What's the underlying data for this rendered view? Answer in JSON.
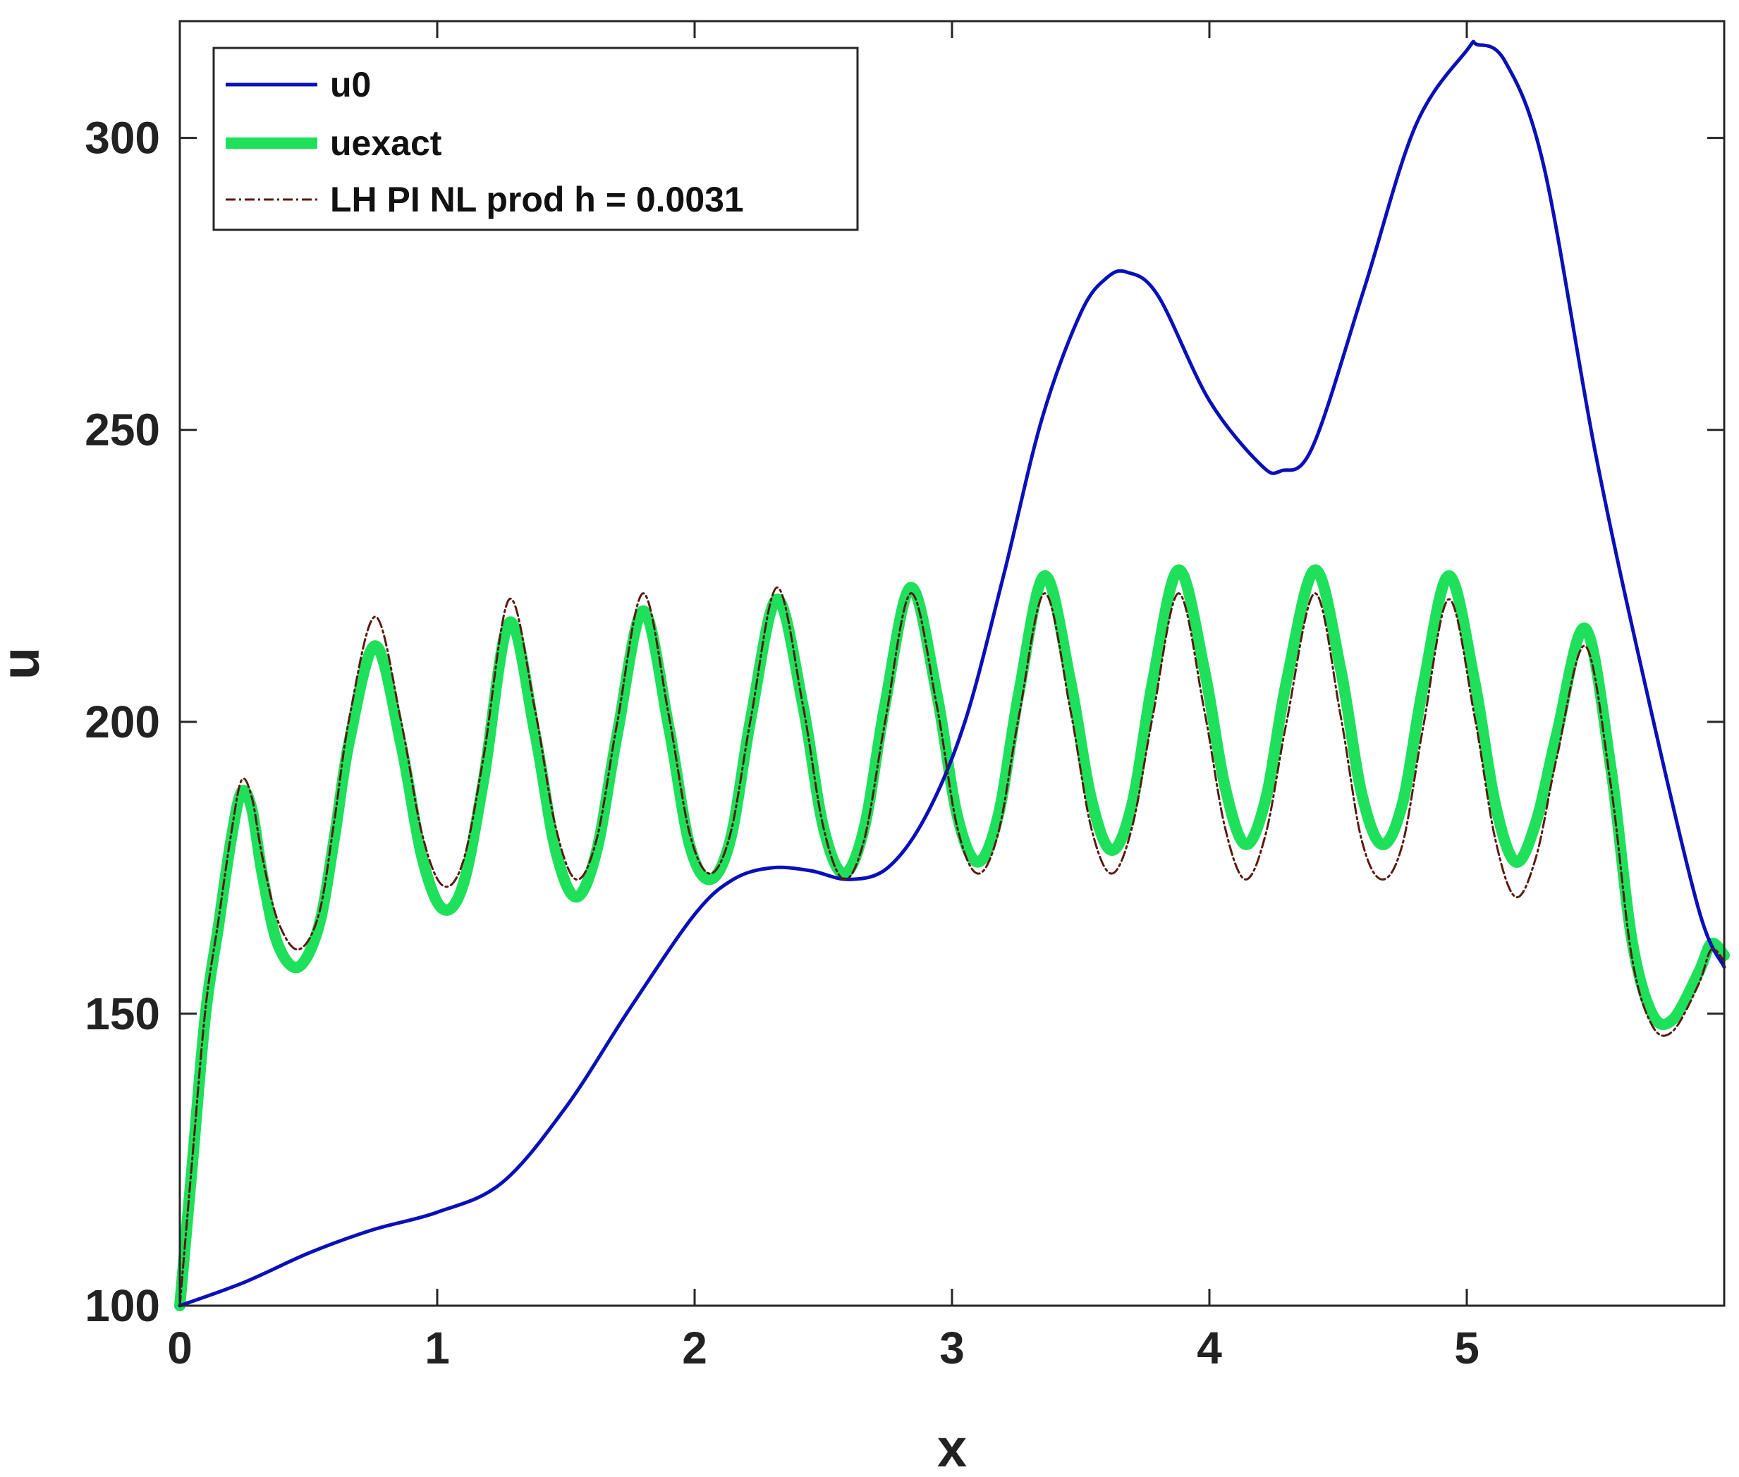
{
  "chart_data": {
    "type": "line",
    "xlabel": "x",
    "ylabel": "u",
    "xlim": [
      0,
      6
    ],
    "ylim": [
      100,
      320
    ],
    "xticks": [
      0,
      1,
      2,
      3,
      4,
      5
    ],
    "yticks": [
      100,
      150,
      200,
      250,
      300
    ],
    "grid": false,
    "legend_position": "top-left",
    "series": [
      {
        "name": "u0",
        "color": "#0a10b8",
        "style": "solid",
        "x": [
          0,
          0.25,
          0.5,
          0.75,
          1.0,
          1.25,
          1.5,
          1.75,
          2.0,
          2.15,
          2.3,
          2.45,
          2.6,
          2.75,
          2.9,
          3.05,
          3.2,
          3.35,
          3.5,
          3.6,
          3.68,
          3.8,
          4.0,
          4.2,
          4.28,
          4.4,
          4.6,
          4.8,
          5.0,
          5.04,
          5.15,
          5.3,
          5.5,
          5.7,
          5.9,
          6.0
        ],
        "values": [
          100,
          104,
          109,
          113,
          116,
          121,
          134,
          151,
          167,
          173,
          175,
          174.5,
          173,
          175,
          184,
          200,
          225,
          252,
          270,
          276,
          277,
          273,
          255,
          244,
          243,
          247,
          274,
          302,
          315,
          316,
          313,
          295,
          246,
          205,
          168,
          158
        ]
      },
      {
        "name": "uexact",
        "color": "#1ee05a",
        "style": "thick",
        "x": [
          0,
          0.05,
          0.1,
          0.15,
          0.2,
          0.24,
          0.28,
          0.32,
          0.38,
          0.46,
          0.54,
          0.6,
          0.66,
          0.76,
          0.86,
          0.94,
          1.02,
          1.1,
          1.18,
          1.28,
          1.38,
          1.46,
          1.54,
          1.62,
          1.7,
          1.8,
          1.9,
          1.98,
          2.06,
          2.14,
          2.22,
          2.32,
          2.42,
          2.5,
          2.58,
          2.66,
          2.74,
          2.84,
          2.94,
          3.02,
          3.1,
          3.18,
          3.26,
          3.36,
          3.46,
          3.54,
          3.62,
          3.7,
          3.78,
          3.88,
          3.98,
          4.06,
          4.14,
          4.22,
          4.3,
          4.41,
          4.51,
          4.59,
          4.67,
          4.75,
          4.83,
          4.93,
          5.03,
          5.11,
          5.19,
          5.27,
          5.35,
          5.46,
          5.56,
          5.64,
          5.72,
          5.8,
          5.9,
          5.95,
          6.0
        ],
        "values": [
          100,
          125,
          150,
          165,
          180,
          188,
          185,
          174,
          162,
          158,
          165,
          180,
          197,
          213,
          196,
          177,
          168,
          172,
          190,
          217,
          198,
          178,
          170,
          178,
          198,
          219,
          199,
          179,
          173,
          180,
          201,
          221,
          203,
          182,
          174,
          182,
          203,
          223,
          205,
          184,
          176,
          184,
          205,
          225,
          207,
          187,
          178,
          186,
          207,
          226,
          209,
          189,
          179,
          187,
          207,
          226,
          209,
          188,
          179,
          186,
          206,
          225,
          207,
          186,
          176,
          183,
          198,
          216,
          192,
          163,
          150,
          149,
          157,
          162,
          160
        ]
      },
      {
        "name": "LH PI NL prod h = 0.0031",
        "color": "#5a1a10",
        "style": "dashdot",
        "x": [
          0,
          0.05,
          0.1,
          0.15,
          0.2,
          0.24,
          0.28,
          0.32,
          0.38,
          0.46,
          0.54,
          0.6,
          0.66,
          0.76,
          0.86,
          0.94,
          1.02,
          1.1,
          1.18,
          1.28,
          1.38,
          1.46,
          1.54,
          1.62,
          1.7,
          1.8,
          1.9,
          1.98,
          2.06,
          2.14,
          2.22,
          2.32,
          2.42,
          2.5,
          2.58,
          2.66,
          2.74,
          2.84,
          2.94,
          3.02,
          3.1,
          3.18,
          3.26,
          3.36,
          3.46,
          3.54,
          3.62,
          3.7,
          3.78,
          3.88,
          3.98,
          4.06,
          4.14,
          4.22,
          4.3,
          4.41,
          4.51,
          4.59,
          4.67,
          4.75,
          4.83,
          4.93,
          5.03,
          5.11,
          5.19,
          5.27,
          5.35,
          5.46,
          5.56,
          5.64,
          5.72,
          5.8,
          5.9,
          5.95,
          6.0
        ],
        "values": [
          100,
          126,
          151,
          166,
          181,
          190,
          187,
          177,
          166,
          161,
          167,
          183,
          201,
          218,
          200,
          181,
          172,
          176,
          194,
          221,
          202,
          182,
          173,
          180,
          200,
          222,
          201,
          181,
          174,
          181,
          201,
          223,
          203,
          182,
          173,
          180,
          200,
          222,
          203,
          182,
          174,
          181,
          201,
          222,
          202,
          182,
          174,
          182,
          201,
          222,
          202,
          182,
          173,
          181,
          200,
          222,
          201,
          180,
          173,
          179,
          199,
          221,
          201,
          180,
          170,
          177,
          194,
          213,
          189,
          160,
          148,
          147,
          155,
          161,
          159
        ]
      }
    ]
  }
}
